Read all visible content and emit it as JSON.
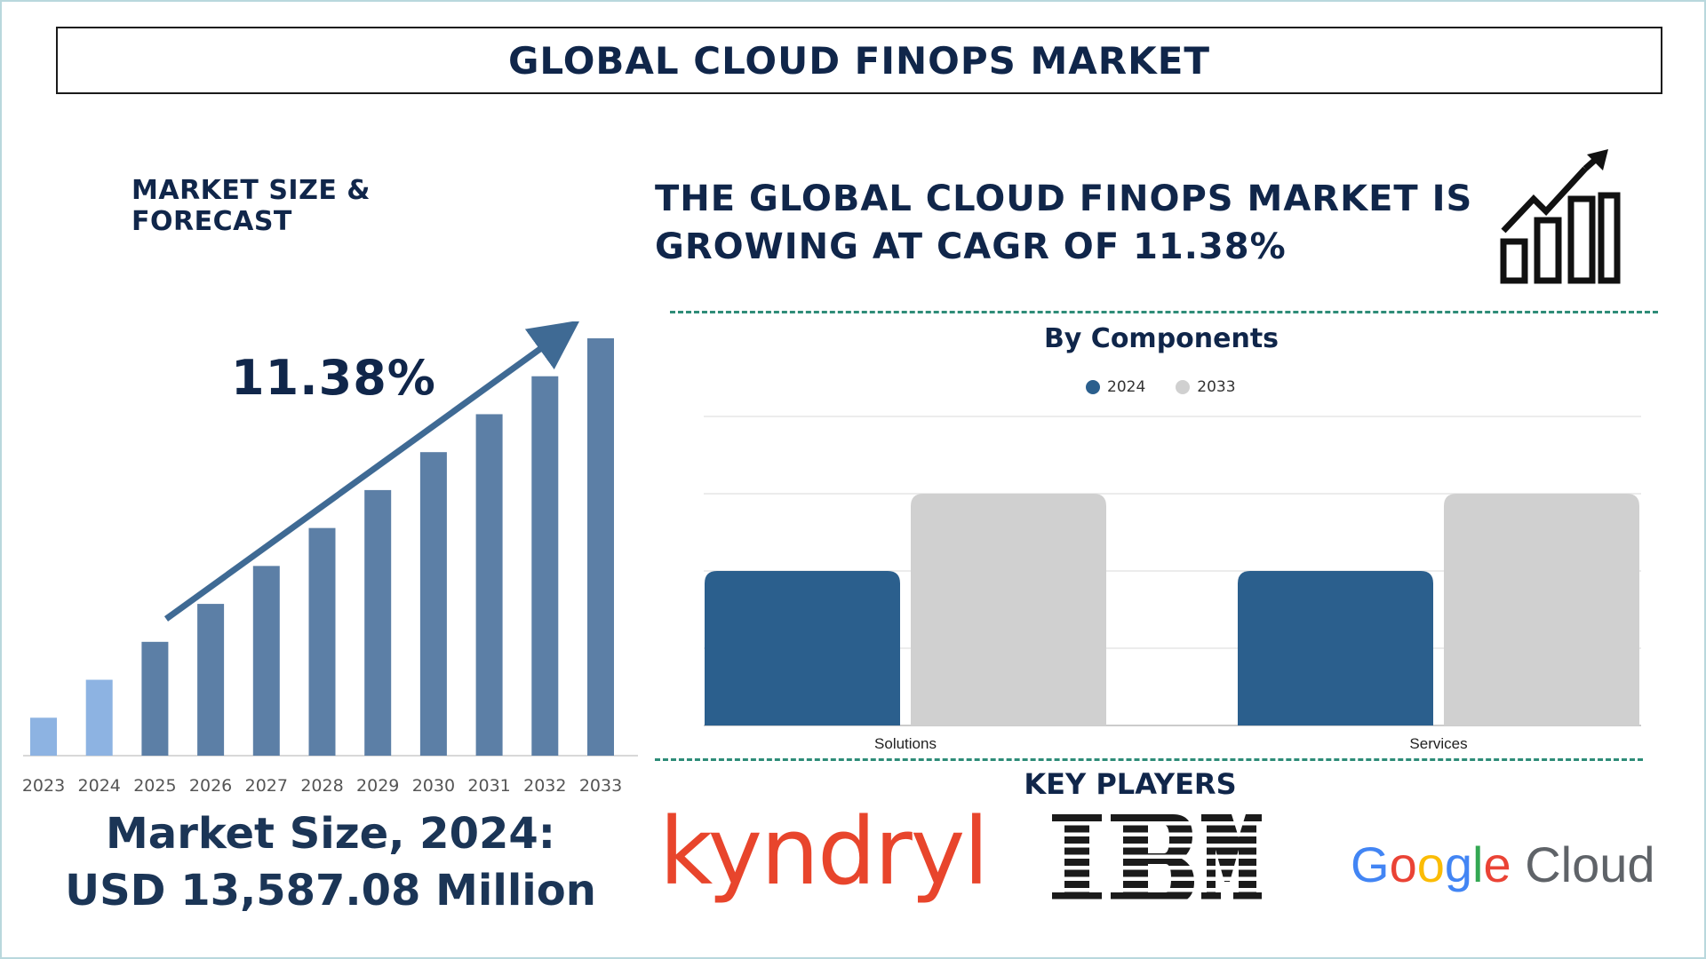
{
  "header": {
    "title": "GLOBAL CLOUD FINOPS MARKET"
  },
  "left": {
    "heading": "MARKET SIZE & FORECAST",
    "cagr": "11.38%",
    "market_size_line1": "Market Size, 2024:",
    "market_size_line2": "USD 13,587.08 Million"
  },
  "right": {
    "headline_line1": "THE GLOBAL CLOUD FINOPS MARKET IS",
    "headline_line2": "GROWING AT CAGR OF 11.38%",
    "icon": "growth-chart-icon"
  },
  "key_players": {
    "title": "KEY PLAYERS",
    "logos": [
      "kyndryl",
      "IBM",
      "Google Cloud"
    ],
    "google_word": "Google",
    "google_cloud_word": "Cloud",
    "kyndryl_word": "kyndryl"
  },
  "colors": {
    "navy": "#10264a",
    "bar_light": "#8db3e2",
    "bar_dark": "#5c7fa6",
    "series_2024": "#2b5f8d",
    "series_2033": "#d0d0d0",
    "dashed": "#2e8c78",
    "kyndryl": "#e8452c"
  },
  "chart_data": [
    {
      "type": "bar",
      "title": "",
      "categories": [
        "2023",
        "2024",
        "2025",
        "2026",
        "2027",
        "2028",
        "2029",
        "2030",
        "2031",
        "2032",
        "2033"
      ],
      "values": [
        1,
        2,
        3,
        4,
        5,
        6,
        7,
        8,
        9,
        10,
        11
      ],
      "highlight": [
        "light",
        "light",
        "dark",
        "dark",
        "dark",
        "dark",
        "dark",
        "dark",
        "dark",
        "dark",
        "dark"
      ],
      "annotation": "11.38%",
      "grid": false
    },
    {
      "type": "bar",
      "title": "By Components",
      "categories": [
        "Solutions",
        "Services"
      ],
      "series": [
        {
          "name": "2024",
          "values": [
            2,
            2
          ]
        },
        {
          "name": "2033",
          "values": [
            3,
            3
          ]
        }
      ],
      "ylim": [
        0,
        4
      ],
      "grid": true,
      "legend": "top-center"
    }
  ]
}
